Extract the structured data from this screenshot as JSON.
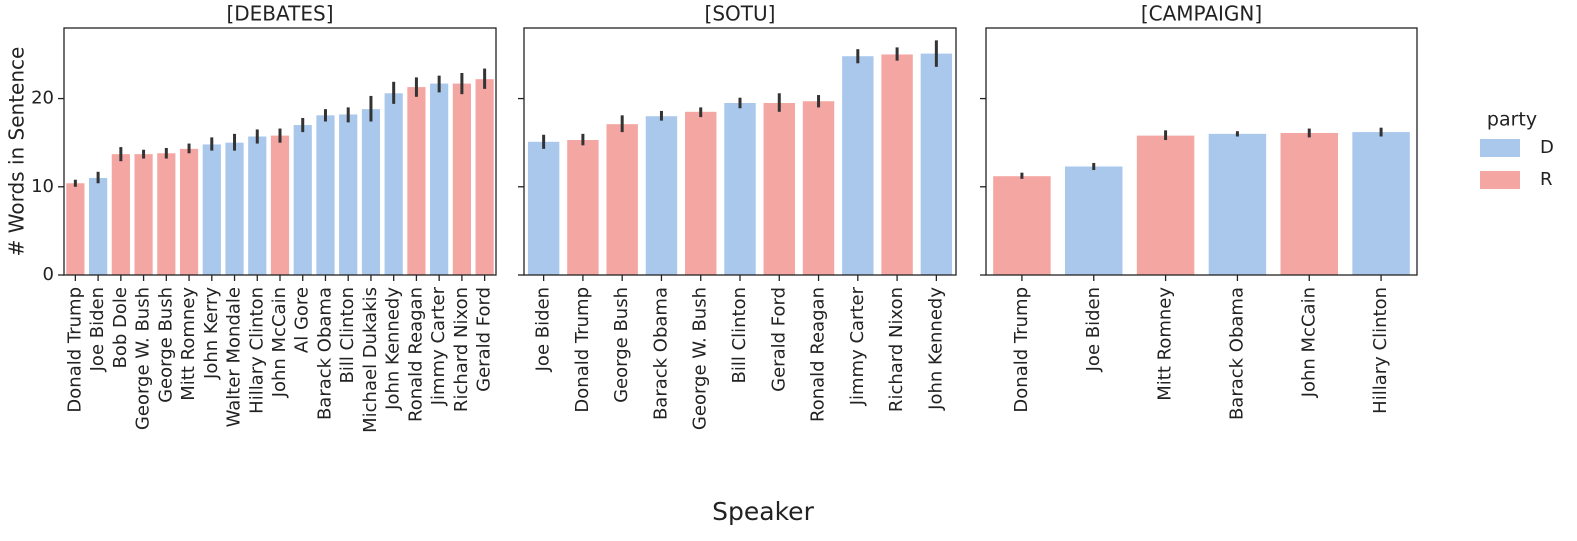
{
  "chart_data": [
    {
      "type": "bar",
      "title": "[DEBATES]",
      "ylabel": "# Words in Sentence",
      "categories": [
        "Donald Trump",
        "Joe Biden",
        "Bob Dole",
        "George W. Bush",
        "George Bush",
        "Mitt Romney",
        "John Kerry",
        "Walter Mondale",
        "Hillary Clinton",
        "John McCain",
        "Al Gore",
        "Barack Obama",
        "Bill Clinton",
        "Michael Dukakis",
        "John Kennedy",
        "Ronald Reagan",
        "Jimmy Carter",
        "Richard Nixon",
        "Gerald Ford"
      ],
      "party": [
        "R",
        "D",
        "R",
        "R",
        "R",
        "R",
        "D",
        "D",
        "D",
        "R",
        "D",
        "D",
        "D",
        "D",
        "D",
        "R",
        "D",
        "R",
        "R"
      ],
      "values": [
        10.4,
        11.0,
        13.7,
        13.7,
        13.8,
        14.3,
        14.8,
        15.0,
        15.7,
        15.8,
        17.0,
        18.1,
        18.2,
        18.8,
        20.6,
        21.3,
        21.7,
        21.7,
        22.2
      ],
      "ci": [
        [
          10.0,
          10.8
        ],
        [
          10.4,
          11.7
        ],
        [
          12.9,
          14.5
        ],
        [
          13.2,
          14.2
        ],
        [
          13.2,
          14.4
        ],
        [
          13.8,
          14.9
        ],
        [
          14.1,
          15.6
        ],
        [
          14.1,
          16.0
        ],
        [
          14.9,
          16.5
        ],
        [
          15.0,
          16.6
        ],
        [
          16.2,
          17.8
        ],
        [
          17.4,
          18.8
        ],
        [
          17.3,
          19.0
        ],
        [
          17.4,
          20.3
        ],
        [
          19.4,
          21.9
        ],
        [
          20.2,
          22.4
        ],
        [
          20.7,
          22.6
        ],
        [
          20.5,
          22.9
        ],
        [
          21.1,
          23.4
        ]
      ],
      "ylim": [
        0,
        28
      ],
      "yticks": [
        0,
        10,
        20
      ]
    },
    {
      "type": "bar",
      "title": "[SOTU]",
      "categories": [
        "Joe Biden",
        "Donald Trump",
        "George Bush",
        "Barack Obama",
        "George W. Bush",
        "Bill Clinton",
        "Gerald Ford",
        "Ronald Reagan",
        "Jimmy Carter",
        "Richard Nixon",
        "John Kennedy"
      ],
      "party": [
        "D",
        "R",
        "R",
        "D",
        "R",
        "D",
        "R",
        "R",
        "D",
        "R",
        "D"
      ],
      "values": [
        15.1,
        15.3,
        17.1,
        18.0,
        18.5,
        19.5,
        19.5,
        19.7,
        24.8,
        25.0,
        25.1
      ],
      "ci": [
        [
          14.3,
          15.9
        ],
        [
          14.7,
          16.0
        ],
        [
          16.2,
          18.1
        ],
        [
          17.5,
          18.6
        ],
        [
          17.9,
          19.0
        ],
        [
          18.9,
          20.1
        ],
        [
          18.5,
          20.6
        ],
        [
          19.0,
          20.4
        ],
        [
          24.0,
          25.6
        ],
        [
          24.3,
          25.8
        ],
        [
          23.6,
          26.6
        ]
      ],
      "ylim": [
        0,
        28
      ],
      "yticks": [
        0,
        10,
        20
      ]
    },
    {
      "type": "bar",
      "title": "[CAMPAIGN]",
      "categories": [
        "Donald Trump",
        "Joe Biden",
        "Mitt Romney",
        "Barack Obama",
        "John McCain",
        "Hillary Clinton"
      ],
      "party": [
        "R",
        "D",
        "R",
        "D",
        "R",
        "D"
      ],
      "values": [
        11.2,
        12.3,
        15.8,
        16.0,
        16.1,
        16.2
      ],
      "ci": [
        [
          10.9,
          11.6
        ],
        [
          11.9,
          12.7
        ],
        [
          15.3,
          16.4
        ],
        [
          15.7,
          16.3
        ],
        [
          15.6,
          16.6
        ],
        [
          15.7,
          16.7
        ]
      ],
      "ylim": [
        0,
        28
      ],
      "yticks": [
        0,
        10,
        20
      ]
    }
  ],
  "xlabel": "Speaker",
  "legend": {
    "title": "party",
    "items": [
      {
        "name": "D",
        "color": "#a9c8ec"
      },
      {
        "name": "R",
        "color": "#f4a6a3"
      }
    ]
  }
}
